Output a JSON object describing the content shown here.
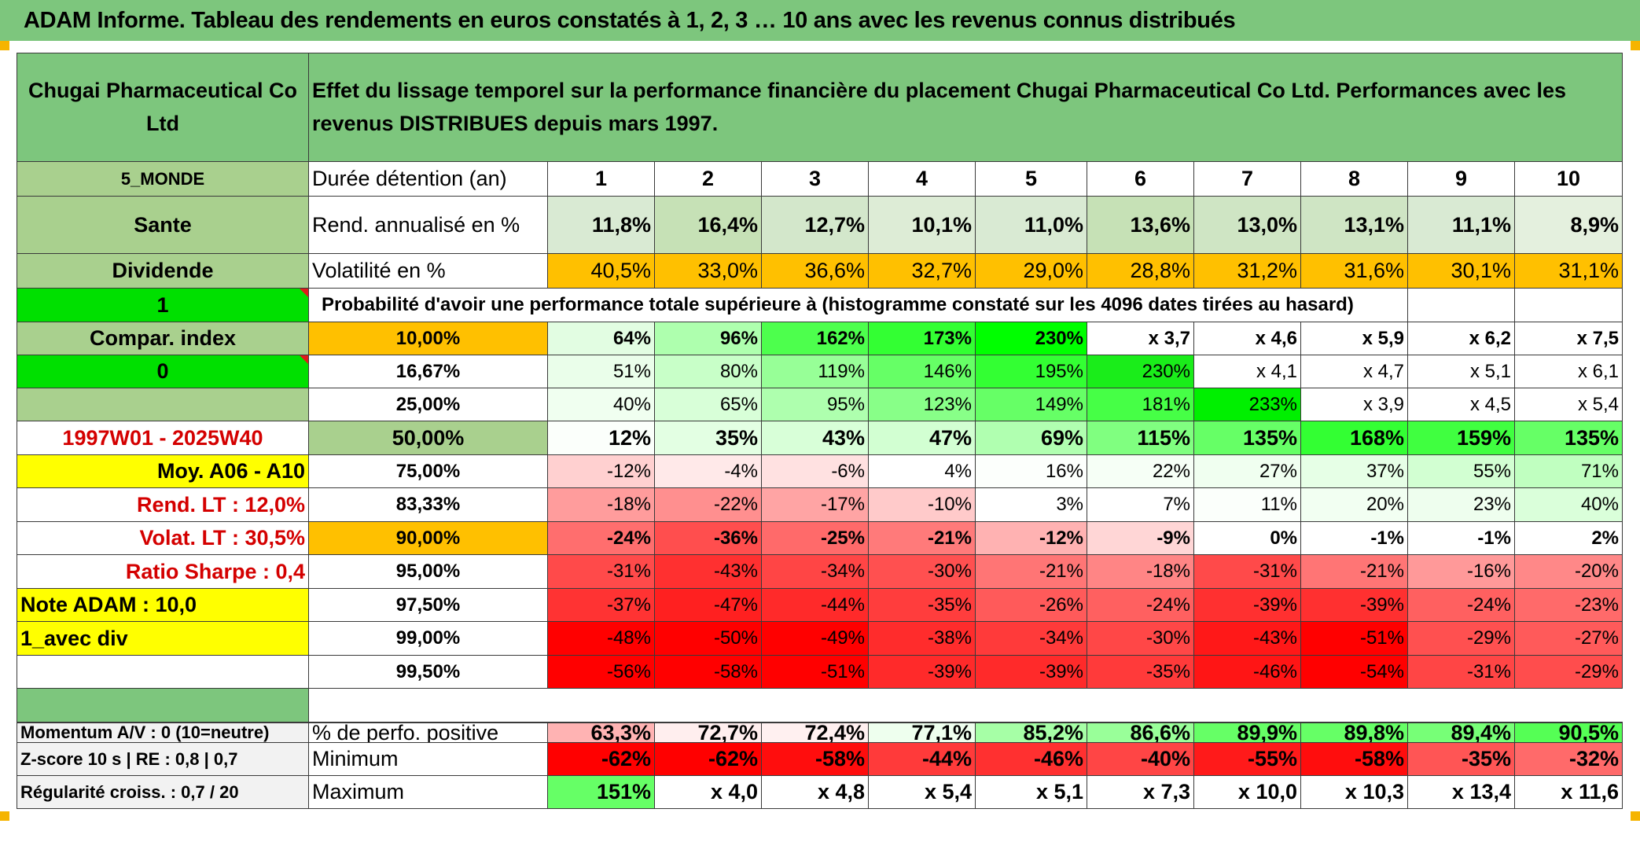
{
  "title": "ADAM Informe. Tableau des rendements en euros constatés à 1, 2, 3 … 10 ans avec les revenus connus distribués",
  "colors": {
    "header_green": "#7dc67d",
    "orange": "#ffc000",
    "lime": "#00e000",
    "yellow": "#ffff00",
    "red_text": "#d40000"
  },
  "left": {
    "company": "Chugai Pharmaceutical Co Ltd",
    "region": "5_MONDE",
    "sector": "Sante",
    "dividend": "Dividende",
    "one": "1",
    "compar": "Compar. index",
    "zero": "0",
    "period": "1997W01 - 2025W40",
    "moy": "Moy. A06 - A10",
    "rend_lt": "Rend. LT :    12,0%",
    "volat_lt": "Volat. LT :    30,5%",
    "sharpe": "Ratio Sharpe :    0,4",
    "note": "Note ADAM : 10,0",
    "avec_div": "1_avec div",
    "momentum": "Momentum A/V : 0 (10=neutre)",
    "zscore": "Z-score 10 s | RE : 0,8 | 0,7",
    "regularite": "Régularité croiss. : 0,7 / 20"
  },
  "description": "Effet du lissage temporel sur la performance financière du placement Chugai Pharmaceutical Co Ltd. Performances avec les revenus DISTRIBUES depuis mars 1997.",
  "headers": {
    "duree": "Durée détention (an)",
    "rend": "Rend. annualisé en %",
    "vol": "Volatilité en %",
    "prob": "Probabilité d'avoir une performance totale supérieure à (histogramme constaté sur les 4096 dates tirées au hasard)",
    "pos": "% de perfo. positive",
    "min": "Minimum",
    "max": "Maximum"
  },
  "years": [
    "1",
    "2",
    "3",
    "4",
    "5",
    "6",
    "7",
    "8",
    "9",
    "10"
  ],
  "rend": [
    "11,8%",
    "16,4%",
    "12,7%",
    "10,1%",
    "11,0%",
    "13,6%",
    "13,0%",
    "13,1%",
    "11,1%",
    "8,9%"
  ],
  "vol": [
    "40,5%",
    "33,0%",
    "36,6%",
    "32,7%",
    "29,0%",
    "28,8%",
    "31,2%",
    "31,6%",
    "30,1%",
    "31,1%"
  ],
  "prob_rows": [
    {
      "p": "10,00%",
      "v": [
        "64%",
        "96%",
        "162%",
        "173%",
        "230%",
        "x 3,7",
        "x 4,6",
        "x 5,9",
        "x 6,2",
        "x 7,5"
      ]
    },
    {
      "p": "16,67%",
      "v": [
        "51%",
        "80%",
        "119%",
        "146%",
        "195%",
        "230%",
        "x 4,1",
        "x 4,7",
        "x 5,1",
        "x 6,1"
      ]
    },
    {
      "p": "25,00%",
      "v": [
        "40%",
        "65%",
        "95%",
        "123%",
        "149%",
        "181%",
        "233%",
        "x 3,9",
        "x 4,5",
        "x 5,4"
      ]
    },
    {
      "p": "50,00%",
      "v": [
        "12%",
        "35%",
        "43%",
        "47%",
        "69%",
        "115%",
        "135%",
        "168%",
        "159%",
        "135%"
      ]
    },
    {
      "p": "75,00%",
      "v": [
        "-12%",
        "-4%",
        "-6%",
        "4%",
        "16%",
        "22%",
        "27%",
        "37%",
        "55%",
        "71%"
      ]
    },
    {
      "p": "83,33%",
      "v": [
        "-18%",
        "-22%",
        "-17%",
        "-10%",
        "3%",
        "7%",
        "11%",
        "20%",
        "23%",
        "40%"
      ]
    },
    {
      "p": "90,00%",
      "v": [
        "-24%",
        "-36%",
        "-25%",
        "-21%",
        "-12%",
        "-9%",
        "0%",
        "-1%",
        "-1%",
        "2%"
      ]
    },
    {
      "p": "95,00%",
      "v": [
        "-31%",
        "-43%",
        "-34%",
        "-30%",
        "-21%",
        "-18%",
        "-31%",
        "-21%",
        "-16%",
        "-20%"
      ]
    },
    {
      "p": "97,50%",
      "v": [
        "-37%",
        "-47%",
        "-44%",
        "-35%",
        "-26%",
        "-24%",
        "-39%",
        "-39%",
        "-24%",
        "-23%"
      ]
    },
    {
      "p": "99,00%",
      "v": [
        "-48%",
        "-50%",
        "-49%",
        "-38%",
        "-34%",
        "-30%",
        "-43%",
        "-51%",
        "-29%",
        "-27%"
      ]
    },
    {
      "p": "99,50%",
      "v": [
        "-56%",
        "-58%",
        "-51%",
        "-39%",
        "-39%",
        "-35%",
        "-46%",
        "-54%",
        "-31%",
        "-29%"
      ]
    }
  ],
  "pos": [
    "63,3%",
    "72,7%",
    "72,4%",
    "77,1%",
    "85,2%",
    "86,6%",
    "89,9%",
    "89,8%",
    "89,4%",
    "90,5%"
  ],
  "min": [
    "-62%",
    "-62%",
    "-58%",
    "-44%",
    "-46%",
    "-40%",
    "-55%",
    "-58%",
    "-35%",
    "-32%"
  ],
  "max": [
    "151%",
    "x 4,0",
    "x 4,8",
    "x 5,4",
    "x 5,1",
    "x 7,3",
    "x 10,0",
    "x 10,3",
    "x 13,4",
    "x 11,6"
  ],
  "cell_colors": {
    "rend": [
      "#d9ead3",
      "#c6e1b6",
      "#d3e7cb",
      "#ddecd6",
      "#d9ead3",
      "#c6e1b6",
      "#cfe5c4",
      "#cfe5c4",
      "#d9ead3",
      "#e4f0de"
    ],
    "vol": [
      "#ffc000",
      "#ffc000",
      "#ffc000",
      "#ffc000",
      "#ffc000",
      "#ffc000",
      "#ffc000",
      "#ffc000",
      "#ffc000",
      "#ffc000"
    ],
    "prob": [
      [
        "#e2fde2",
        "#aeffae",
        "#4dff4d",
        "#33ff33",
        "#00ff00",
        "#ffffff",
        "#ffffff",
        "#ffffff",
        "#ffffff",
        "#ffffff"
      ],
      [
        "#eafeea",
        "#c8ffc8",
        "#97ff97",
        "#66ff66",
        "#33ff33",
        "#1aed1a",
        "#ffffff",
        "#ffffff",
        "#ffffff",
        "#ffffff"
      ],
      [
        "#f0fff0",
        "#d8ffd8",
        "#aeffae",
        "#88ff88",
        "#66ff66",
        "#46ff46",
        "#00f000",
        "#ffffff",
        "#ffffff",
        "#ffffff"
      ],
      [
        "#fbfffb",
        "#e3ffe3",
        "#d8ffd8",
        "#d2ffd2",
        "#b0ffb0",
        "#80ff80",
        "#66ff66",
        "#33ff33",
        "#40ff40",
        "#66ff66"
      ],
      [
        "#ffd0d0",
        "#ffe9e9",
        "#ffe1e1",
        "#ffffff",
        "#fcfffc",
        "#f6fff6",
        "#f0fff0",
        "#e6ffe6",
        "#d2ffd2",
        "#c0ffc0"
      ],
      [
        "#ff9c9c",
        "#ff8f8f",
        "#ffa4a4",
        "#ffcaca",
        "#ffffff",
        "#ffffff",
        "#fbfffb",
        "#f2fff2",
        "#eefeee",
        "#daffda"
      ],
      [
        "#ff6e6e",
        "#ff4e4e",
        "#ff6a6a",
        "#ff7a7a",
        "#ffb2b2",
        "#ffd6d6",
        "#ffffff",
        "#ffffff",
        "#ffffff",
        "#ffffff"
      ],
      [
        "#ff4a4a",
        "#ff3030",
        "#ff4545",
        "#ff5050",
        "#ff7575",
        "#ff8585",
        "#ff4a4a",
        "#ff7575",
        "#ff9999",
        "#ff8888"
      ],
      [
        "#ff3333",
        "#ff2020",
        "#ff2a2a",
        "#ff3d3d",
        "#ff5a5a",
        "#ff6060",
        "#ff3030",
        "#ff3030",
        "#ff6060",
        "#ff6a6a"
      ],
      [
        "#ff0000",
        "#ff0000",
        "#ff0000",
        "#ff2c2c",
        "#ff3a3a",
        "#ff4747",
        "#ff1818",
        "#ff0000",
        "#ff5050",
        "#ff5a5a"
      ],
      [
        "#ff0000",
        "#ff0000",
        "#ff0000",
        "#ff2a2a",
        "#ff2a2a",
        "#ff3a3a",
        "#ff1515",
        "#ff0000",
        "#ff4545",
        "#ff4d4d"
      ]
    ],
    "pos": [
      "#ffb3b3",
      "#ffeeee",
      "#fff0f0",
      "#eeffee",
      "#a6ffa6",
      "#99ff99",
      "#66ff66",
      "#66ff66",
      "#77ff77",
      "#55ff55"
    ],
    "min": [
      "#ff0000",
      "#ff0000",
      "#ff0d0d",
      "#ff3a3a",
      "#ff3030",
      "#ff4545",
      "#ff1a1a",
      "#ff0d0d",
      "#ff5555",
      "#ff6a6a"
    ],
    "max": [
      "#66ff66",
      "#ffffff",
      "#ffffff",
      "#ffffff",
      "#ffffff",
      "#ffffff",
      "#ffffff",
      "#ffffff",
      "#ffffff",
      "#ffffff"
    ]
  }
}
